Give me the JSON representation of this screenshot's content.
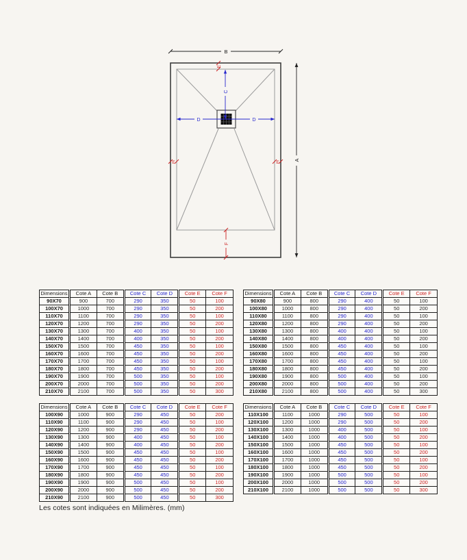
{
  "note": "Les cotes sont indiquées en Milimères. (mm)",
  "colors": {
    "page_bg": "#f7f5f1",
    "cote_cd_blue": "#2626cd",
    "cote_ef_red": "#cc2222"
  },
  "diagram": {
    "labels": {
      "a": "A",
      "b": "B",
      "c": "C",
      "d": "D",
      "e": "E",
      "f": "F"
    }
  },
  "tables": [
    {
      "name": "series-70",
      "headers": [
        "Dimensions",
        "Cote A",
        "Cote B",
        "Cote C",
        "Cote D",
        "Cote E",
        "Cote F"
      ],
      "ef_values_black": false,
      "rows": [
        [
          "90X70",
          "900",
          "700",
          "290",
          "350",
          "50",
          "100"
        ],
        [
          "100X70",
          "1000",
          "700",
          "290",
          "350",
          "50",
          "200"
        ],
        [
          "110X70",
          "1100",
          "700",
          "290",
          "350",
          "50",
          "100"
        ],
        [
          "120X70",
          "1200",
          "700",
          "290",
          "350",
          "50",
          "200"
        ],
        [
          "130X70",
          "1300",
          "700",
          "400",
          "350",
          "50",
          "100"
        ],
        [
          "140X70",
          "1400",
          "700",
          "400",
          "350",
          "50",
          "200"
        ],
        [
          "150X70",
          "1500",
          "700",
          "450",
          "350",
          "50",
          "100"
        ],
        [
          "160X70",
          "1600",
          "700",
          "450",
          "350",
          "50",
          "200"
        ],
        [
          "170X70",
          "1700",
          "700",
          "450",
          "350",
          "50",
          "100"
        ],
        [
          "180X70",
          "1800",
          "700",
          "450",
          "350",
          "50",
          "200"
        ],
        [
          "190X70",
          "1900",
          "700",
          "500",
          "350",
          "50",
          "100"
        ],
        [
          "200X70",
          "2000",
          "700",
          "500",
          "350",
          "50",
          "200"
        ],
        [
          "210X70",
          "2100",
          "700",
          "500",
          "350",
          "50",
          "300"
        ]
      ]
    },
    {
      "name": "series-80",
      "headers": [
        "Dimensions",
        "Cote A",
        "Cote B",
        "Cote C",
        "Cote D",
        "Cote E",
        "Cote F"
      ],
      "ef_values_black": true,
      "rows": [
        [
          "90X80",
          "900",
          "800",
          "290",
          "400",
          "50",
          "100"
        ],
        [
          "100X80",
          "1000",
          "800",
          "290",
          "400",
          "50",
          "200"
        ],
        [
          "110X80",
          "1100",
          "800",
          "290",
          "400",
          "50",
          "100"
        ],
        [
          "120X80",
          "1200",
          "800",
          "290",
          "400",
          "50",
          "200"
        ],
        [
          "130X80",
          "1300",
          "800",
          "400",
          "400",
          "50",
          "100"
        ],
        [
          "140X80",
          "1400",
          "800",
          "400",
          "400",
          "50",
          "200"
        ],
        [
          "150X80",
          "1500",
          "800",
          "450",
          "400",
          "50",
          "100"
        ],
        [
          "160X80",
          "1600",
          "800",
          "450",
          "400",
          "50",
          "200"
        ],
        [
          "170X80",
          "1700",
          "800",
          "450",
          "400",
          "50",
          "100"
        ],
        [
          "180X80",
          "1800",
          "800",
          "450",
          "400",
          "50",
          "200"
        ],
        [
          "190X80",
          "1900",
          "800",
          "500",
          "400",
          "50",
          "100"
        ],
        [
          "200X80",
          "2000",
          "800",
          "500",
          "400",
          "50",
          "200"
        ],
        [
          "210X80",
          "2100",
          "800",
          "500",
          "400",
          "50",
          "300"
        ]
      ]
    },
    {
      "name": "series-90",
      "headers": [
        "Dimensions",
        "Cote A",
        "Cote B",
        "Cote C",
        "Cote D",
        "Cote E",
        "Cote F"
      ],
      "ef_values_black": false,
      "rows": [
        [
          "100X90",
          "1000",
          "900",
          "290",
          "450",
          "50",
          "200"
        ],
        [
          "110X90",
          "1100",
          "900",
          "290",
          "450",
          "50",
          "100"
        ],
        [
          "120X90",
          "1200",
          "900",
          "290",
          "450",
          "50",
          "200"
        ],
        [
          "130X90",
          "1300",
          "900",
          "400",
          "450",
          "50",
          "100"
        ],
        [
          "140X90",
          "1400",
          "900",
          "400",
          "450",
          "50",
          "200"
        ],
        [
          "150X90",
          "1500",
          "900",
          "450",
          "450",
          "50",
          "100"
        ],
        [
          "160X90",
          "1600",
          "900",
          "450",
          "450",
          "50",
          "200"
        ],
        [
          "170X90",
          "1700",
          "900",
          "450",
          "450",
          "50",
          "100"
        ],
        [
          "180X90",
          "1800",
          "900",
          "450",
          "450",
          "50",
          "200"
        ],
        [
          "190X90",
          "1900",
          "900",
          "500",
          "450",
          "50",
          "100"
        ],
        [
          "200X90",
          "2000",
          "900",
          "500",
          "450",
          "50",
          "200"
        ],
        [
          "210X90",
          "2100",
          "900",
          "500",
          "450",
          "50",
          "300"
        ]
      ]
    },
    {
      "name": "series-100",
      "headers": [
        "Dimensions",
        "Cote A",
        "Cote B",
        "Cote C",
        "Cote D",
        "Cote E",
        "Cote F"
      ],
      "ef_values_black": false,
      "rows": [
        [
          "110X100",
          "1100",
          "1000",
          "290",
          "500",
          "50",
          "100"
        ],
        [
          "120X100",
          "1200",
          "1000",
          "290",
          "500",
          "50",
          "200"
        ],
        [
          "130X100",
          "1300",
          "1000",
          "400",
          "500",
          "50",
          "100"
        ],
        [
          "140X100",
          "1400",
          "1000",
          "400",
          "500",
          "50",
          "200"
        ],
        [
          "150X100",
          "1500",
          "1000",
          "450",
          "500",
          "50",
          "100"
        ],
        [
          "160X100",
          "1600",
          "1000",
          "450",
          "500",
          "50",
          "200"
        ],
        [
          "170X100",
          "1700",
          "1000",
          "450",
          "500",
          "50",
          "100"
        ],
        [
          "180X100",
          "1800",
          "1000",
          "450",
          "500",
          "50",
          "200"
        ],
        [
          "190X100",
          "1900",
          "1000",
          "500",
          "500",
          "50",
          "100"
        ],
        [
          "200X100",
          "2000",
          "1000",
          "500",
          "500",
          "50",
          "200"
        ],
        [
          "210X100",
          "2100",
          "1000",
          "500",
          "500",
          "50",
          "300"
        ]
      ]
    }
  ]
}
